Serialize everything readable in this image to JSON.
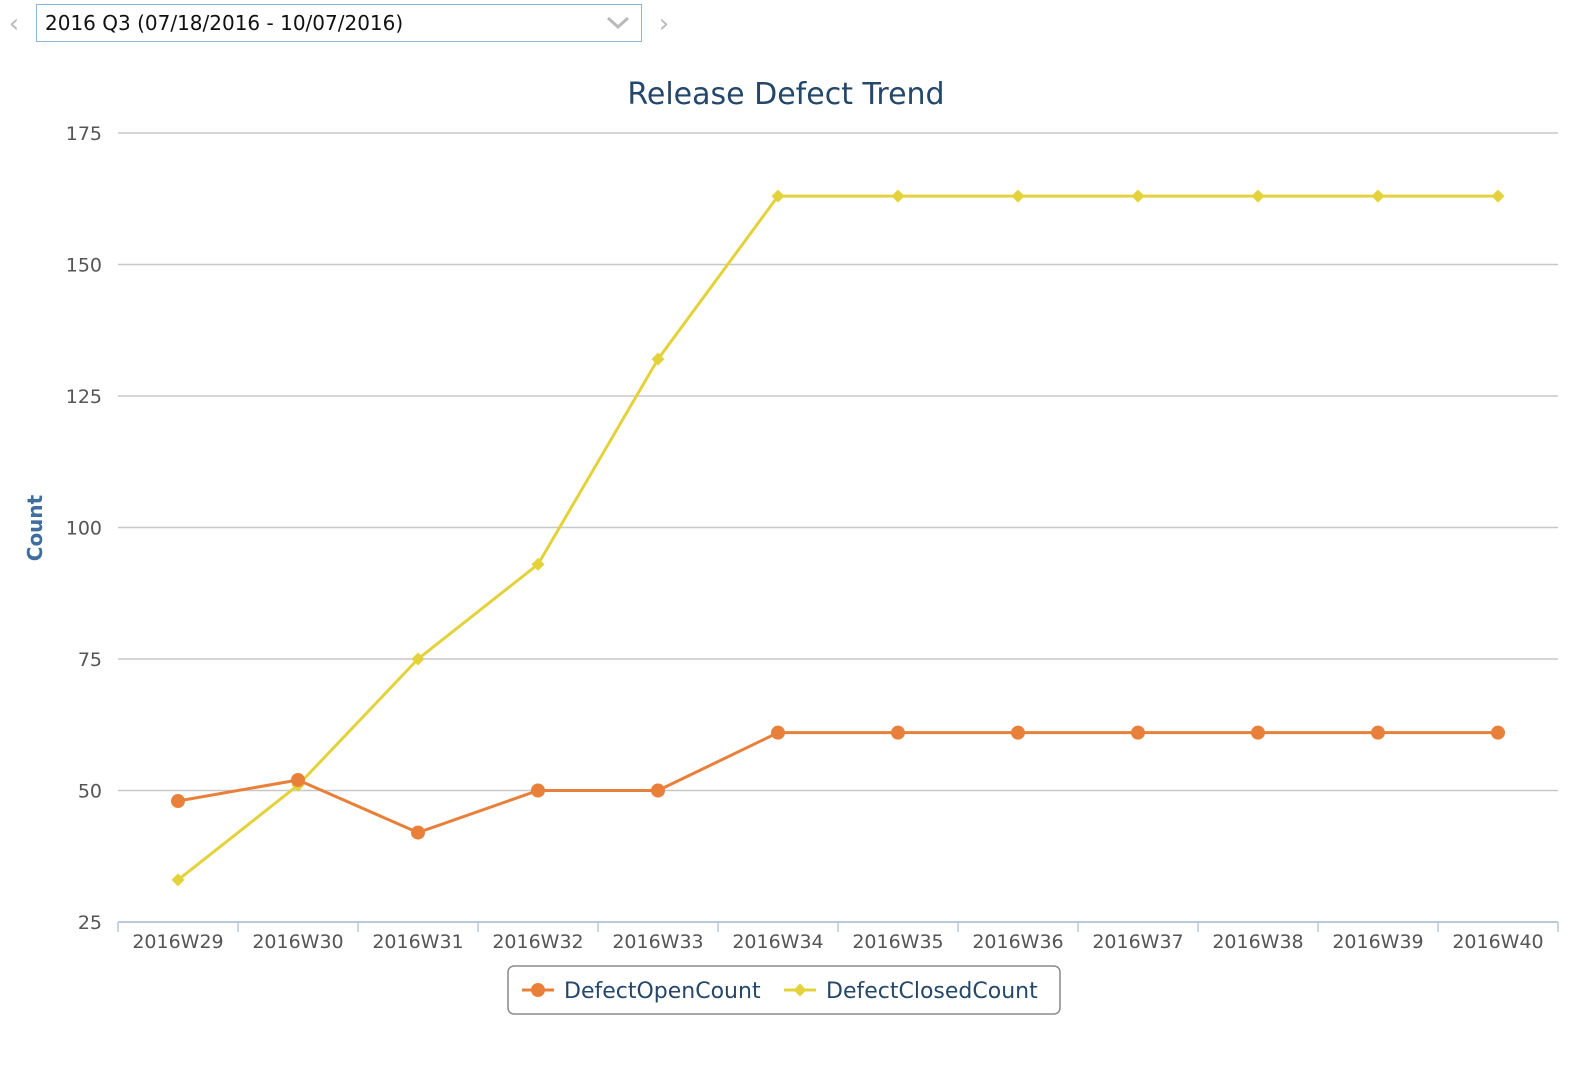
{
  "period_selector": {
    "value": "2016 Q3 (07/18/2016 - 10/07/2016)",
    "prev_icon": "chevron-left-icon",
    "next_icon": "chevron-right-icon",
    "dropdown_icon": "chevron-down-icon"
  },
  "chart_data": {
    "type": "line",
    "title": "Release Defect Trend",
    "xlabel": "",
    "ylabel": "Count",
    "ylim": [
      25,
      175
    ],
    "yticks": [
      25,
      50,
      75,
      100,
      125,
      150,
      175
    ],
    "grid": true,
    "legend_position": "bottom-center",
    "categories": [
      "2016W29",
      "2016W30",
      "2016W31",
      "2016W32",
      "2016W33",
      "2016W34",
      "2016W35",
      "2016W36",
      "2016W37",
      "2016W38",
      "2016W39",
      "2016W40"
    ],
    "series": [
      {
        "name": "DefectOpenCount",
        "color": "#e8803a",
        "marker": "circle",
        "values": [
          48,
          52,
          42,
          50,
          50,
          61,
          61,
          61,
          61,
          61,
          61,
          61
        ]
      },
      {
        "name": "DefectClosedCount",
        "color": "#e3d23a",
        "marker": "diamond",
        "values": [
          33,
          51,
          75,
          93,
          132,
          163,
          163,
          163,
          163,
          163,
          163,
          163
        ]
      }
    ]
  }
}
